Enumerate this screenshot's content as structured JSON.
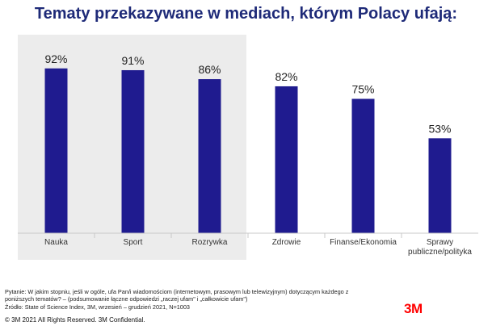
{
  "chart_data": {
    "type": "bar",
    "title": "Tematy przekazywane w mediach, którym Polacy ufają:",
    "categories": [
      "Nauka",
      "Sport",
      "Rozrywka",
      "Zdrowie",
      "Finanse/Ekonomia",
      "Sprawy publiczne/polityka"
    ],
    "category_lines": [
      [
        "Nauka"
      ],
      [
        "Sport"
      ],
      [
        "Rozrywka"
      ],
      [
        "Zdrowie"
      ],
      [
        "Finanse/Ekonomia"
      ],
      [
        "Sprawy",
        "publiczne/polityka"
      ]
    ],
    "values": [
      92,
      91,
      86,
      82,
      75,
      53
    ],
    "value_labels": [
      "92%",
      "91%",
      "86%",
      "82%",
      "75%",
      "53%"
    ],
    "highlighted_categories": [
      "Nauka",
      "Sport",
      "Rozrywka"
    ],
    "ylim": [
      0,
      100
    ],
    "xlabel": "",
    "ylabel": "",
    "grid": false,
    "bar_color": "#1f1b8f",
    "highlight_color": "#ececec"
  },
  "footnote": {
    "lines": [
      "Pytanie: W jakim stopniu, jeśli w ogóle, ufa Pan/i wiadomościom (internetowym, prasowym lub telewizyjnym) dotyczącym każdego z",
      "poniższych tematów? – (podsumowanie łączne odpowiedzi „raczej ufam\" i „całkowicie ufam\")",
      "Źródło: State of Science Index, 3M, wrzesień – grudzień 2021, N=1003"
    ]
  },
  "copyright": "© 3M 2021  All Rights Reserved.  3M Confidential.",
  "brand": "3M"
}
